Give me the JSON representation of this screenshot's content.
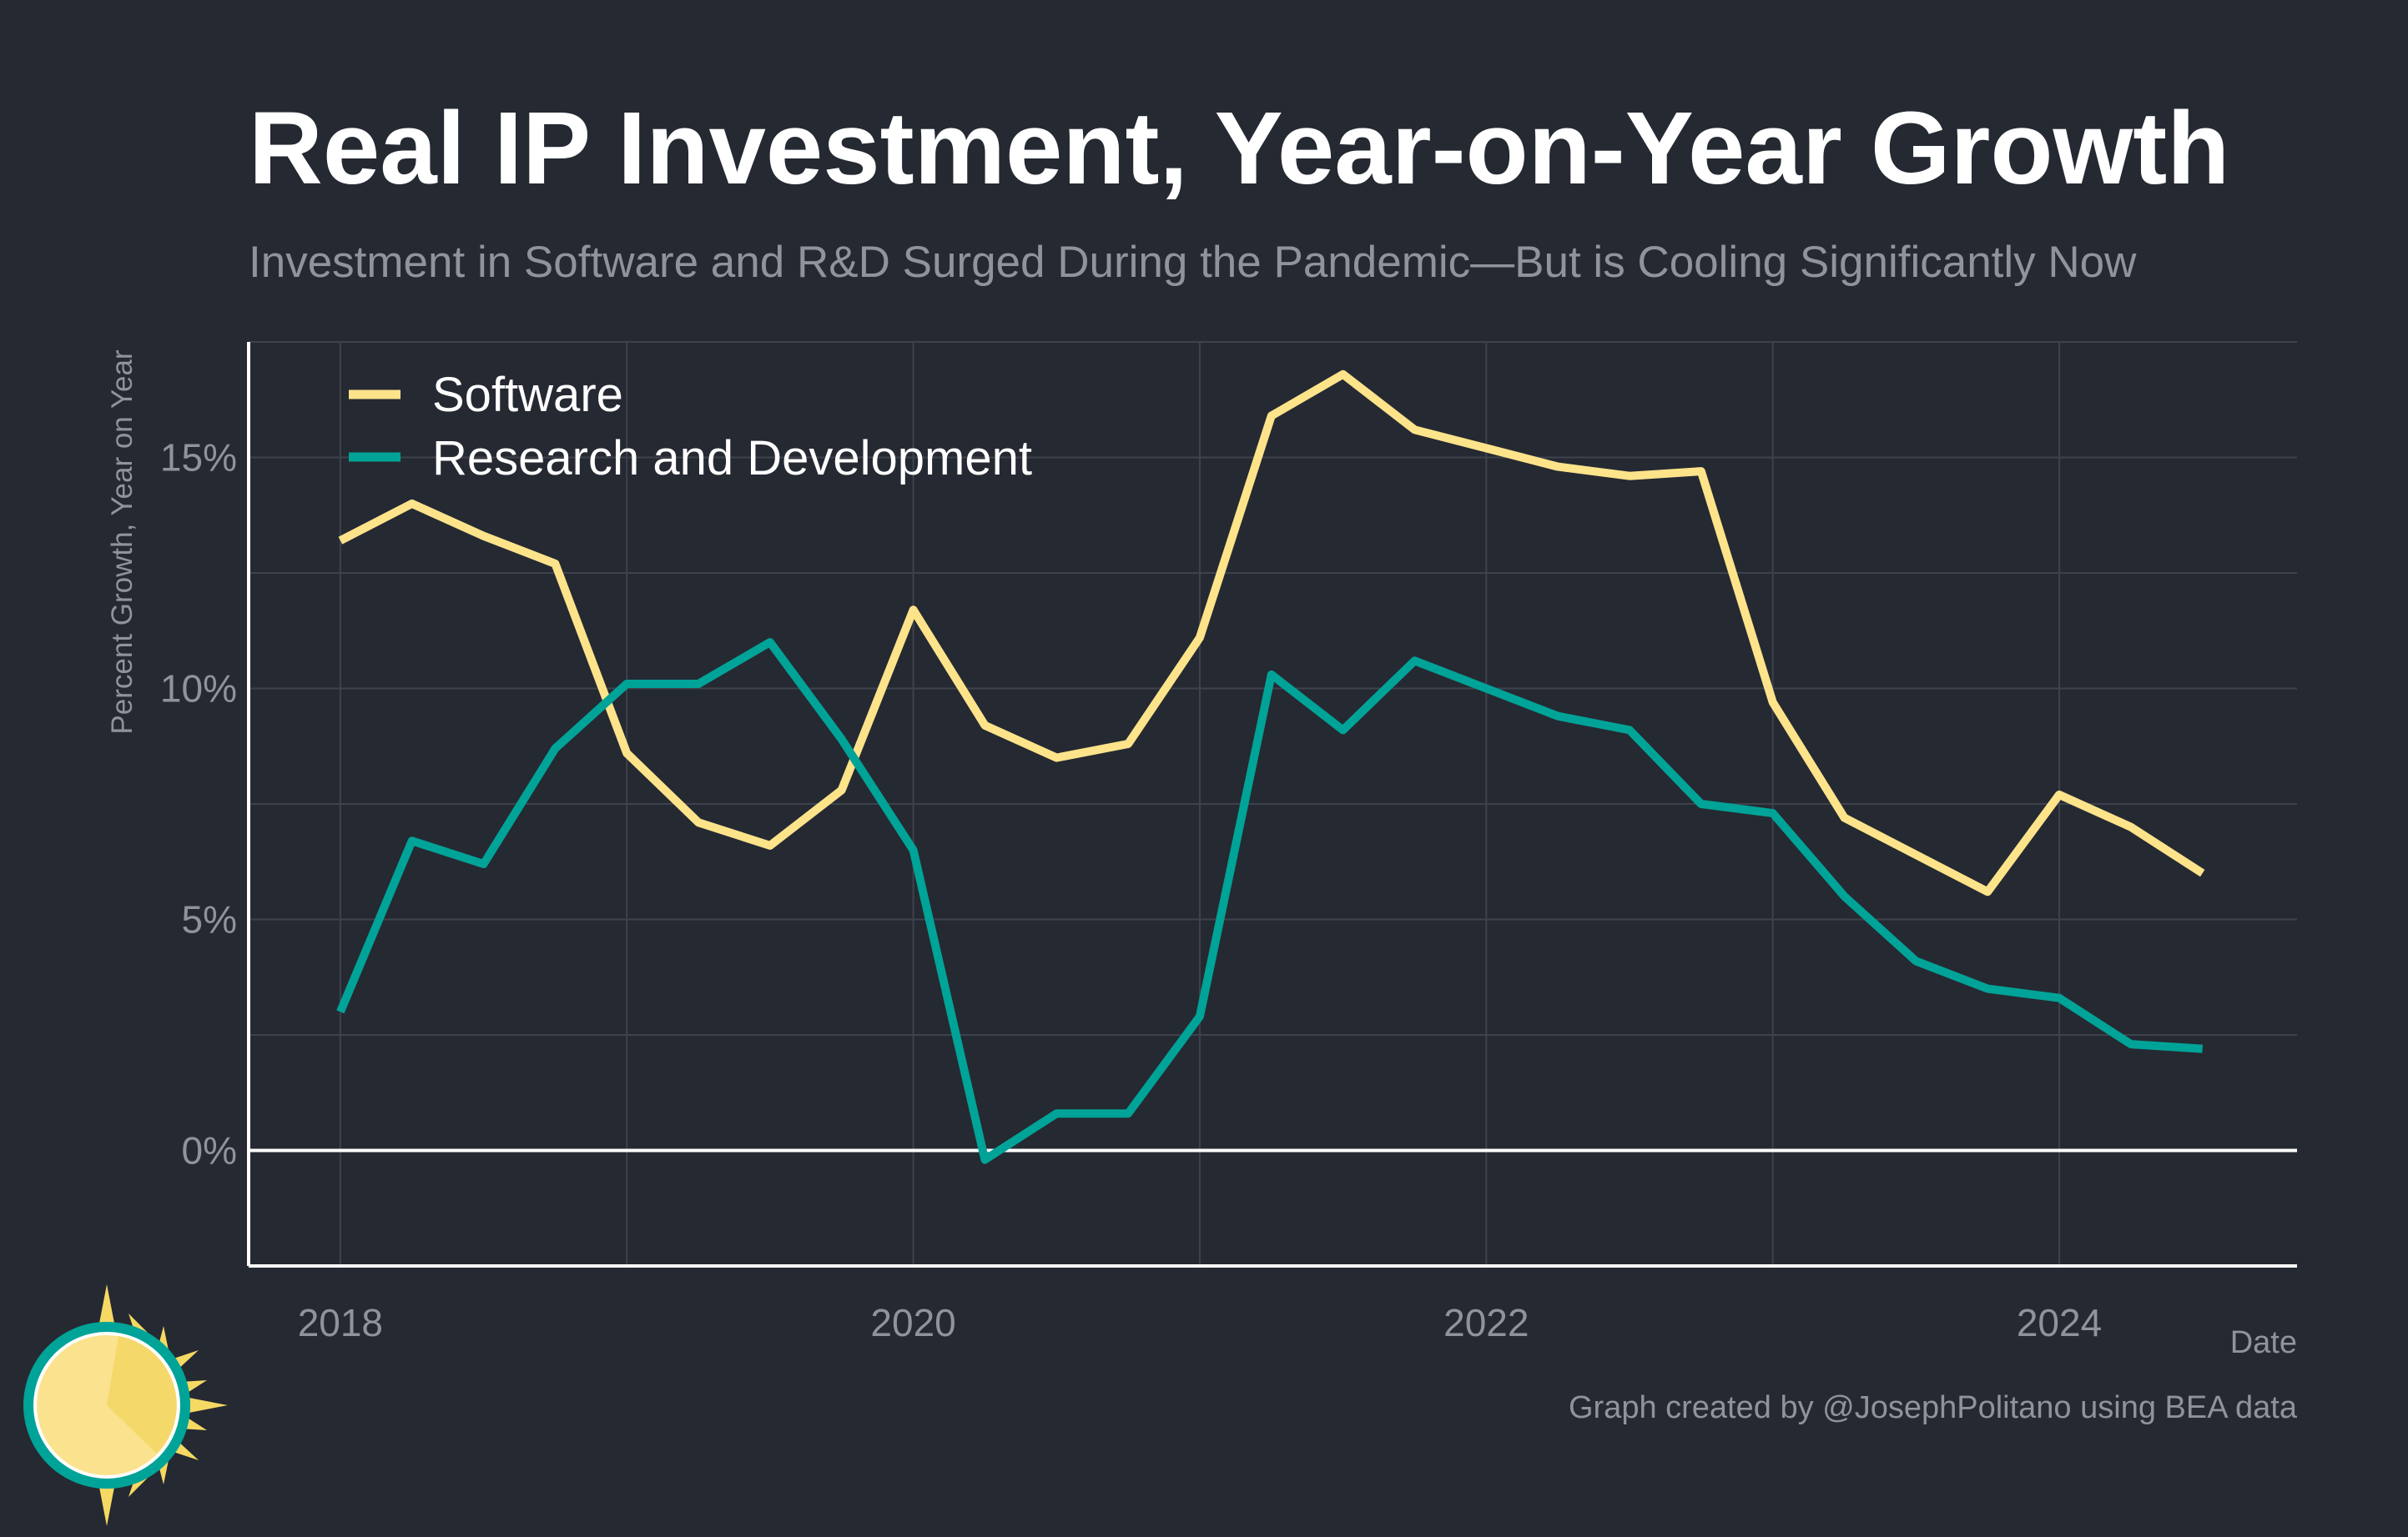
{
  "colors": {
    "background": "#252932",
    "software": "#fde38a",
    "rnd": "#00a397",
    "grid": "#3d424c",
    "text_muted": "#8f939b",
    "axis": "#ffffff"
  },
  "logo": {
    "icon": "sun-icon"
  },
  "chart_data": {
    "type": "line",
    "title": "Real IP Investment, Year-on-Year Growth",
    "subtitle": "Investment in Software and R&D Surged During the Pandemic—But is Cooling Significantly Now",
    "xlabel": "Date",
    "ylabel": "Percent Growth, Year on Year",
    "credit": "Graph created by @JosephPolitano using BEA data",
    "x_ticks": [
      "2018",
      "2020",
      "2022",
      "2024"
    ],
    "y_ticks": [
      "0%",
      "5%",
      "10%",
      "15%"
    ],
    "xlim": [
      2017.68,
      2024.83
    ],
    "ylim": [
      -2.5,
      17.5
    ],
    "grid": true,
    "legend_position": "top-left",
    "x": [
      "2018-Q1",
      "2018-Q2",
      "2018-Q3",
      "2018-Q4",
      "2019-Q1",
      "2019-Q2",
      "2019-Q3",
      "2019-Q4",
      "2020-Q1",
      "2020-Q2",
      "2020-Q3",
      "2020-Q4",
      "2021-Q1",
      "2021-Q2",
      "2021-Q3",
      "2021-Q4",
      "2022-Q1",
      "2022-Q2",
      "2022-Q3",
      "2022-Q4",
      "2023-Q1",
      "2023-Q2",
      "2023-Q3",
      "2023-Q4",
      "2024-Q1",
      "2024-Q2",
      "2024-Q3"
    ],
    "series": [
      {
        "name": "Software",
        "color": "#fde38a",
        "values": [
          13.2,
          14.0,
          13.3,
          12.7,
          8.6,
          7.1,
          6.6,
          7.8,
          11.7,
          9.2,
          8.5,
          8.8,
          11.1,
          15.9,
          16.8,
          15.6,
          15.2,
          14.8,
          14.6,
          14.7,
          9.7,
          7.2,
          6.4,
          5.6,
          7.7,
          7.0,
          6.0
        ]
      },
      {
        "name": "Research and Development",
        "color": "#00a397",
        "values": [
          3.0,
          6.7,
          6.2,
          8.7,
          10.1,
          10.1,
          11.0,
          8.9,
          6.5,
          -0.2,
          0.8,
          0.8,
          2.9,
          10.3,
          9.1,
          10.6,
          10.0,
          9.4,
          9.1,
          7.5,
          7.3,
          5.5,
          4.1,
          3.5,
          3.3,
          2.3,
          2.2
        ]
      }
    ]
  }
}
